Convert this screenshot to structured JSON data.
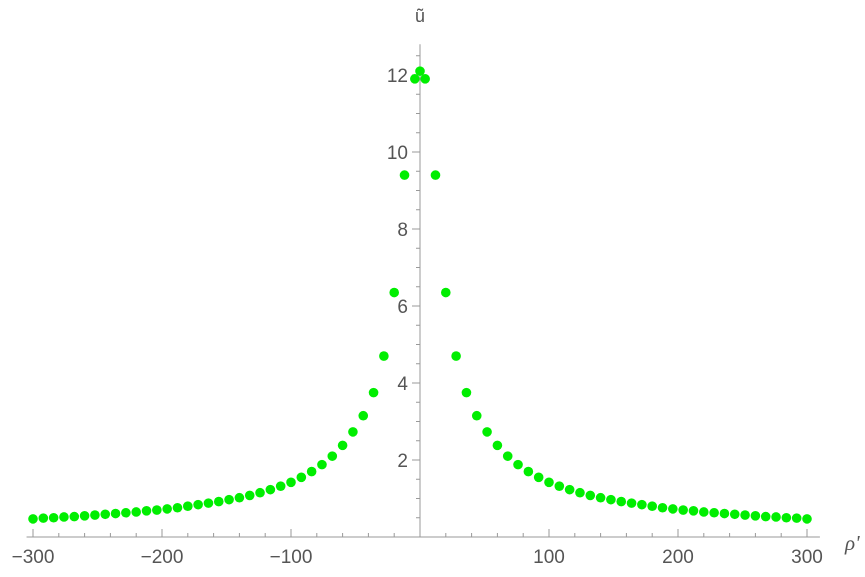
{
  "chart_data": {
    "type": "scatter",
    "title": "",
    "xlabel": "ρ'",
    "ylabel": "ũ",
    "xlim": [
      -305,
      310
    ],
    "ylim": [
      0,
      12.8
    ],
    "x_ticks": [
      {
        "value": -300,
        "label": "−300"
      },
      {
        "value": -200,
        "label": "−200"
      },
      {
        "value": -100,
        "label": "−100"
      },
      {
        "value": 100,
        "label": "100"
      },
      {
        "value": 200,
        "label": "200"
      },
      {
        "value": 300,
        "label": "300"
      }
    ],
    "y_ticks": [
      {
        "value": 2,
        "label": "2"
      },
      {
        "value": 4,
        "label": "4"
      },
      {
        "value": 6,
        "label": "6"
      },
      {
        "value": 8,
        "label": "8"
      },
      {
        "value": 10,
        "label": "10"
      },
      {
        "value": 12,
        "label": "12"
      }
    ],
    "grid": false,
    "marker_color": "#00ee00",
    "series": [
      {
        "points": [
          [
            -300,
            0.47
          ],
          [
            -292,
            0.49
          ],
          [
            -284,
            0.5
          ],
          [
            -276,
            0.52
          ],
          [
            -268,
            0.53
          ],
          [
            -260,
            0.55
          ],
          [
            -252,
            0.57
          ],
          [
            -244,
            0.59
          ],
          [
            -236,
            0.61
          ],
          [
            -228,
            0.63
          ],
          [
            -220,
            0.65
          ],
          [
            -212,
            0.68
          ],
          [
            -204,
            0.7
          ],
          [
            -196,
            0.73
          ],
          [
            -188,
            0.76
          ],
          [
            -180,
            0.8
          ],
          [
            -172,
            0.84
          ],
          [
            -164,
            0.88
          ],
          [
            -156,
            0.92
          ],
          [
            -148,
            0.97
          ],
          [
            -140,
            1.02
          ],
          [
            -132,
            1.08
          ],
          [
            -124,
            1.15
          ],
          [
            -116,
            1.23
          ],
          [
            -108,
            1.32
          ],
          [
            -100,
            1.42
          ],
          [
            -92,
            1.55
          ],
          [
            -84,
            1.7
          ],
          [
            -76,
            1.88
          ],
          [
            -68,
            2.1
          ],
          [
            -60,
            2.38
          ],
          [
            -52,
            2.73
          ],
          [
            -44,
            3.15
          ],
          [
            -36,
            3.75
          ],
          [
            -28,
            4.7
          ],
          [
            -20,
            6.35
          ],
          [
            -12,
            9.4
          ],
          [
            -4,
            11.9
          ],
          [
            0,
            12.1
          ],
          [
            4,
            11.9
          ],
          [
            12,
            9.4
          ],
          [
            20,
            6.35
          ],
          [
            28,
            4.7
          ],
          [
            36,
            3.75
          ],
          [
            44,
            3.15
          ],
          [
            52,
            2.73
          ],
          [
            60,
            2.38
          ],
          [
            68,
            2.1
          ],
          [
            76,
            1.88
          ],
          [
            84,
            1.7
          ],
          [
            92,
            1.55
          ],
          [
            100,
            1.42
          ],
          [
            108,
            1.32
          ],
          [
            116,
            1.23
          ],
          [
            124,
            1.15
          ],
          [
            132,
            1.08
          ],
          [
            140,
            1.02
          ],
          [
            148,
            0.97
          ],
          [
            156,
            0.92
          ],
          [
            164,
            0.88
          ],
          [
            172,
            0.84
          ],
          [
            180,
            0.8
          ],
          [
            188,
            0.76
          ],
          [
            196,
            0.73
          ],
          [
            204,
            0.7
          ],
          [
            212,
            0.68
          ],
          [
            220,
            0.65
          ],
          [
            228,
            0.63
          ],
          [
            236,
            0.61
          ],
          [
            244,
            0.59
          ],
          [
            252,
            0.57
          ],
          [
            260,
            0.55
          ],
          [
            268,
            0.53
          ],
          [
            276,
            0.52
          ],
          [
            284,
            0.5
          ],
          [
            292,
            0.49
          ],
          [
            300,
            0.47
          ]
        ]
      }
    ]
  }
}
